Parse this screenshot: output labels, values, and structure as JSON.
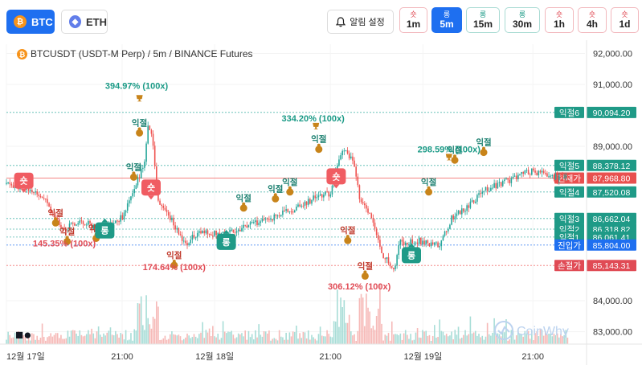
{
  "coins": [
    {
      "label": "BTC",
      "icon": "bitcoin-icon",
      "active": true
    },
    {
      "label": "ETH",
      "icon": "ethereum-icon",
      "active": false
    }
  ],
  "alert_label": "알림 설정",
  "timeframes": [
    {
      "dir": "숏",
      "label": "1m",
      "kind": "short",
      "active": false
    },
    {
      "dir": "롱",
      "label": "5m",
      "kind": "long",
      "active": true
    },
    {
      "dir": "롱",
      "label": "15m",
      "kind": "long",
      "active": false
    },
    {
      "dir": "롱",
      "label": "30m",
      "kind": "long",
      "active": false
    },
    {
      "dir": "숏",
      "label": "1h",
      "kind": "short",
      "active": false
    },
    {
      "dir": "숏",
      "label": "4h",
      "kind": "short",
      "active": false
    },
    {
      "dir": "숏",
      "label": "1d",
      "kind": "short",
      "active": false
    }
  ],
  "chart_title": "BTCUSDT (USDT-M Perp) / 5m / BINANCE Futures",
  "watermark": "CoinWhy",
  "colors": {
    "up": "#26a69a",
    "down": "#ef5350",
    "accent": "#1e6ff0",
    "teal": "#1a9a86",
    "red": "#e04b55"
  },
  "chart_data": {
    "type": "candlestick",
    "ylim": [
      82600,
      92300
    ],
    "y_ticks": [
      "92,000.00",
      "91,000.00",
      "89,000.00",
      "84,000.00",
      "83,000.00"
    ],
    "y_tick_values": [
      92000,
      91000,
      89000,
      84000,
      83000
    ],
    "x_ticks": [
      "12월 17일",
      "21:00",
      "12월 18일",
      "21:00",
      "12월 19일",
      "21:00"
    ],
    "x_tick_values": [
      0.0,
      0.2,
      0.36,
      0.56,
      0.72,
      0.91
    ],
    "price_path": [
      [
        0.0,
        87780
      ],
      [
        0.04,
        87620
      ],
      [
        0.07,
        87150
      ],
      [
        0.1,
        86300
      ],
      [
        0.13,
        86600
      ],
      [
        0.16,
        86300
      ],
      [
        0.2,
        86700
      ],
      [
        0.22,
        87500
      ],
      [
        0.24,
        88600
      ],
      [
        0.245,
        89800
      ],
      [
        0.255,
        88900
      ],
      [
        0.26,
        87300
      ],
      [
        0.28,
        86800
      ],
      [
        0.3,
        86100
      ],
      [
        0.31,
        85800
      ],
      [
        0.33,
        86200
      ],
      [
        0.36,
        86200
      ],
      [
        0.4,
        86300
      ],
      [
        0.43,
        86500
      ],
      [
        0.46,
        86700
      ],
      [
        0.5,
        87000
      ],
      [
        0.53,
        87300
      ],
      [
        0.56,
        87500
      ],
      [
        0.58,
        88900
      ],
      [
        0.6,
        88600
      ],
      [
        0.61,
        87400
      ],
      [
        0.63,
        86700
      ],
      [
        0.64,
        86100
      ],
      [
        0.65,
        85500
      ],
      [
        0.67,
        85000
      ],
      [
        0.68,
        85900
      ],
      [
        0.71,
        85950
      ],
      [
        0.75,
        85800
      ],
      [
        0.77,
        86700
      ],
      [
        0.8,
        87100
      ],
      [
        0.82,
        87500
      ],
      [
        0.84,
        87700
      ],
      [
        0.87,
        87900
      ],
      [
        0.9,
        88200
      ],
      [
        0.93,
        88100
      ],
      [
        0.95,
        88000
      ],
      [
        0.97,
        87950
      ]
    ],
    "levels": [
      {
        "label": "익절6",
        "value": "90,094.20",
        "price": 90094.2,
        "kind": "tp"
      },
      {
        "label": "익절5",
        "value": "88,378.12",
        "price": 88378.12,
        "kind": "tp"
      },
      {
        "label": "현재가",
        "value": "87,968.80",
        "price": 87968.8,
        "kind": "current"
      },
      {
        "label": "익절4",
        "value": "87,520.08",
        "price": 87520.08,
        "kind": "tp"
      },
      {
        "label": "익절3",
        "value": "86,662.04",
        "price": 86662.04,
        "kind": "tp"
      },
      {
        "label": "익절2",
        "value": "86,318.82",
        "price": 86318.82,
        "kind": "tp"
      },
      {
        "label": "익절1",
        "value": "86,061.41",
        "price": 86061.41,
        "kind": "tp"
      },
      {
        "label": "진입가",
        "value": "85,804.00",
        "price": 85804.0,
        "kind": "entry"
      },
      {
        "label": "손절가",
        "value": "85,143.31",
        "price": 85143.31,
        "kind": "stop"
      }
    ],
    "signals": [
      {
        "label": "숏",
        "kind": "short",
        "x": 0.03,
        "price": 87860
      },
      {
        "label": "롱",
        "kind": "long",
        "x": 0.17,
        "price": 86250
      },
      {
        "label": "숏",
        "kind": "short",
        "x": 0.25,
        "price": 87640
      },
      {
        "label": "롱",
        "kind": "long",
        "x": 0.38,
        "price": 85880
      },
      {
        "label": "숏",
        "kind": "short",
        "x": 0.57,
        "price": 88000
      },
      {
        "label": "롱",
        "kind": "long",
        "x": 0.7,
        "price": 85450
      }
    ],
    "annotations": [
      {
        "text": "394.97% (100x)",
        "x": 0.225,
        "price": 90860,
        "kind": "gain-long"
      },
      {
        "text": "145.35% (100x)",
        "x": 0.1,
        "price": 85760,
        "kind": "gain-short"
      },
      {
        "text": "174.64% (100x)",
        "x": 0.29,
        "price": 84990,
        "kind": "gain-short"
      },
      {
        "text": "334.20% (100x)",
        "x": 0.53,
        "price": 89800,
        "kind": "gain-long"
      },
      {
        "text": "306.12% (100x)",
        "x": 0.61,
        "price": 84370,
        "kind": "gain-short"
      },
      {
        "text": "298.59% (100x)",
        "x": 0.765,
        "price": 88800,
        "kind": "gain-long"
      }
    ],
    "take_profit_markers": [
      {
        "label": "익절",
        "x": 0.085,
        "price": 86520,
        "color": "red"
      },
      {
        "label": "익절",
        "x": 0.105,
        "price": 85920,
        "color": "red"
      },
      {
        "label": "익절",
        "x": 0.155,
        "price": 86020,
        "color": "red"
      },
      {
        "label": "익절",
        "x": 0.23,
        "price": 89430,
        "color": "teal"
      },
      {
        "label": "익절",
        "x": 0.22,
        "price": 88000,
        "color": "teal"
      },
      {
        "label": "익절",
        "x": 0.29,
        "price": 85150,
        "color": "red"
      },
      {
        "label": "익절",
        "x": 0.41,
        "price": 87000,
        "color": "teal"
      },
      {
        "label": "익절",
        "x": 0.465,
        "price": 87300,
        "color": "teal"
      },
      {
        "label": "익절",
        "x": 0.49,
        "price": 87520,
        "color": "teal"
      },
      {
        "label": "익절",
        "x": 0.54,
        "price": 88900,
        "color": "teal"
      },
      {
        "label": "익절",
        "x": 0.59,
        "price": 85950,
        "color": "red"
      },
      {
        "label": "익절",
        "x": 0.62,
        "price": 84800,
        "color": "red"
      },
      {
        "label": "익절",
        "x": 0.73,
        "price": 87520,
        "color": "teal"
      },
      {
        "label": "익절",
        "x": 0.775,
        "price": 88550,
        "color": "teal"
      },
      {
        "label": "익절",
        "x": 0.825,
        "price": 88800,
        "color": "teal"
      }
    ],
    "trophies": [
      {
        "x": 0.23,
        "price": 90550
      },
      {
        "x": 0.535,
        "price": 89650
      },
      {
        "x": 0.765,
        "price": 88650
      }
    ]
  }
}
